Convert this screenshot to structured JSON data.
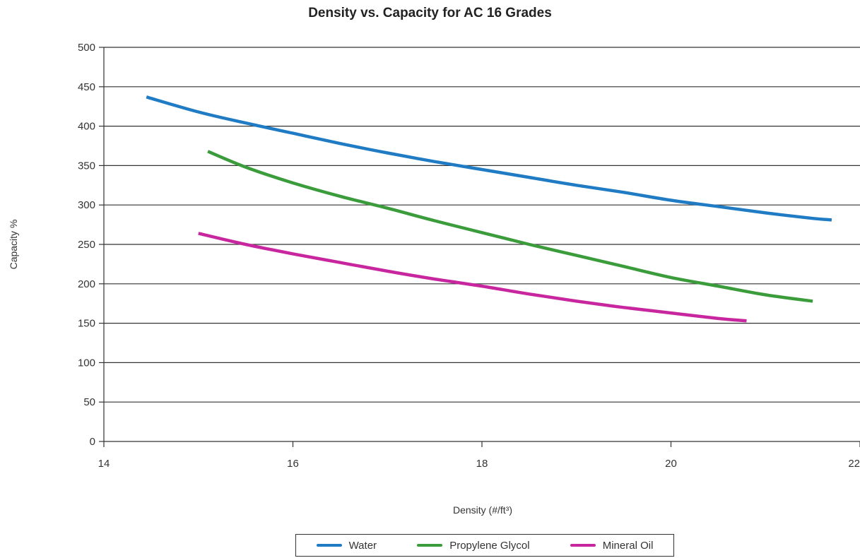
{
  "chart_data": {
    "type": "line",
    "title": "Density vs. Capacity for AC 16 Grades",
    "xlabel": "Density (#/ft³)",
    "ylabel": "Capacity %",
    "xlim": [
      14,
      22
    ],
    "ylim": [
      0,
      500
    ],
    "xticks": [
      "14",
      "16",
      "18",
      "20",
      "22"
    ],
    "yticks": [
      "0",
      "50",
      "100",
      "150",
      "200",
      "250",
      "300",
      "350",
      "400",
      "450",
      "500"
    ],
    "grid": "horizontal",
    "legend_position": "bottom",
    "series": [
      {
        "name": "Water",
        "color": "#1f7bc4",
        "x": [
          14.45,
          15.0,
          15.5,
          16.0,
          16.5,
          17.0,
          17.5,
          18.0,
          18.5,
          19.0,
          19.5,
          20.0,
          20.5,
          21.0,
          21.5,
          21.7
        ],
        "y": [
          437,
          418,
          404,
          391,
          378,
          366,
          355,
          345,
          335,
          325,
          316,
          306,
          298,
          290,
          283,
          281
        ]
      },
      {
        "name": "Propylene Glycol",
        "color": "#3b9c3b",
        "x": [
          15.1,
          15.5,
          16.0,
          16.5,
          17.0,
          17.5,
          18.0,
          18.5,
          19.0,
          19.5,
          20.0,
          20.5,
          21.0,
          21.5
        ],
        "y": [
          368,
          348,
          328,
          311,
          296,
          280,
          265,
          250,
          236,
          222,
          208,
          197,
          186,
          178
        ]
      },
      {
        "name": "Mineral Oil",
        "color": "#c8269e",
        "x": [
          15.0,
          15.5,
          16.0,
          16.5,
          17.0,
          17.5,
          18.0,
          18.5,
          19.0,
          19.5,
          20.0,
          20.5,
          20.8
        ],
        "y": [
          264,
          250,
          238,
          227,
          216,
          206,
          197,
          187,
          178,
          170,
          163,
          156,
          153
        ]
      }
    ]
  }
}
